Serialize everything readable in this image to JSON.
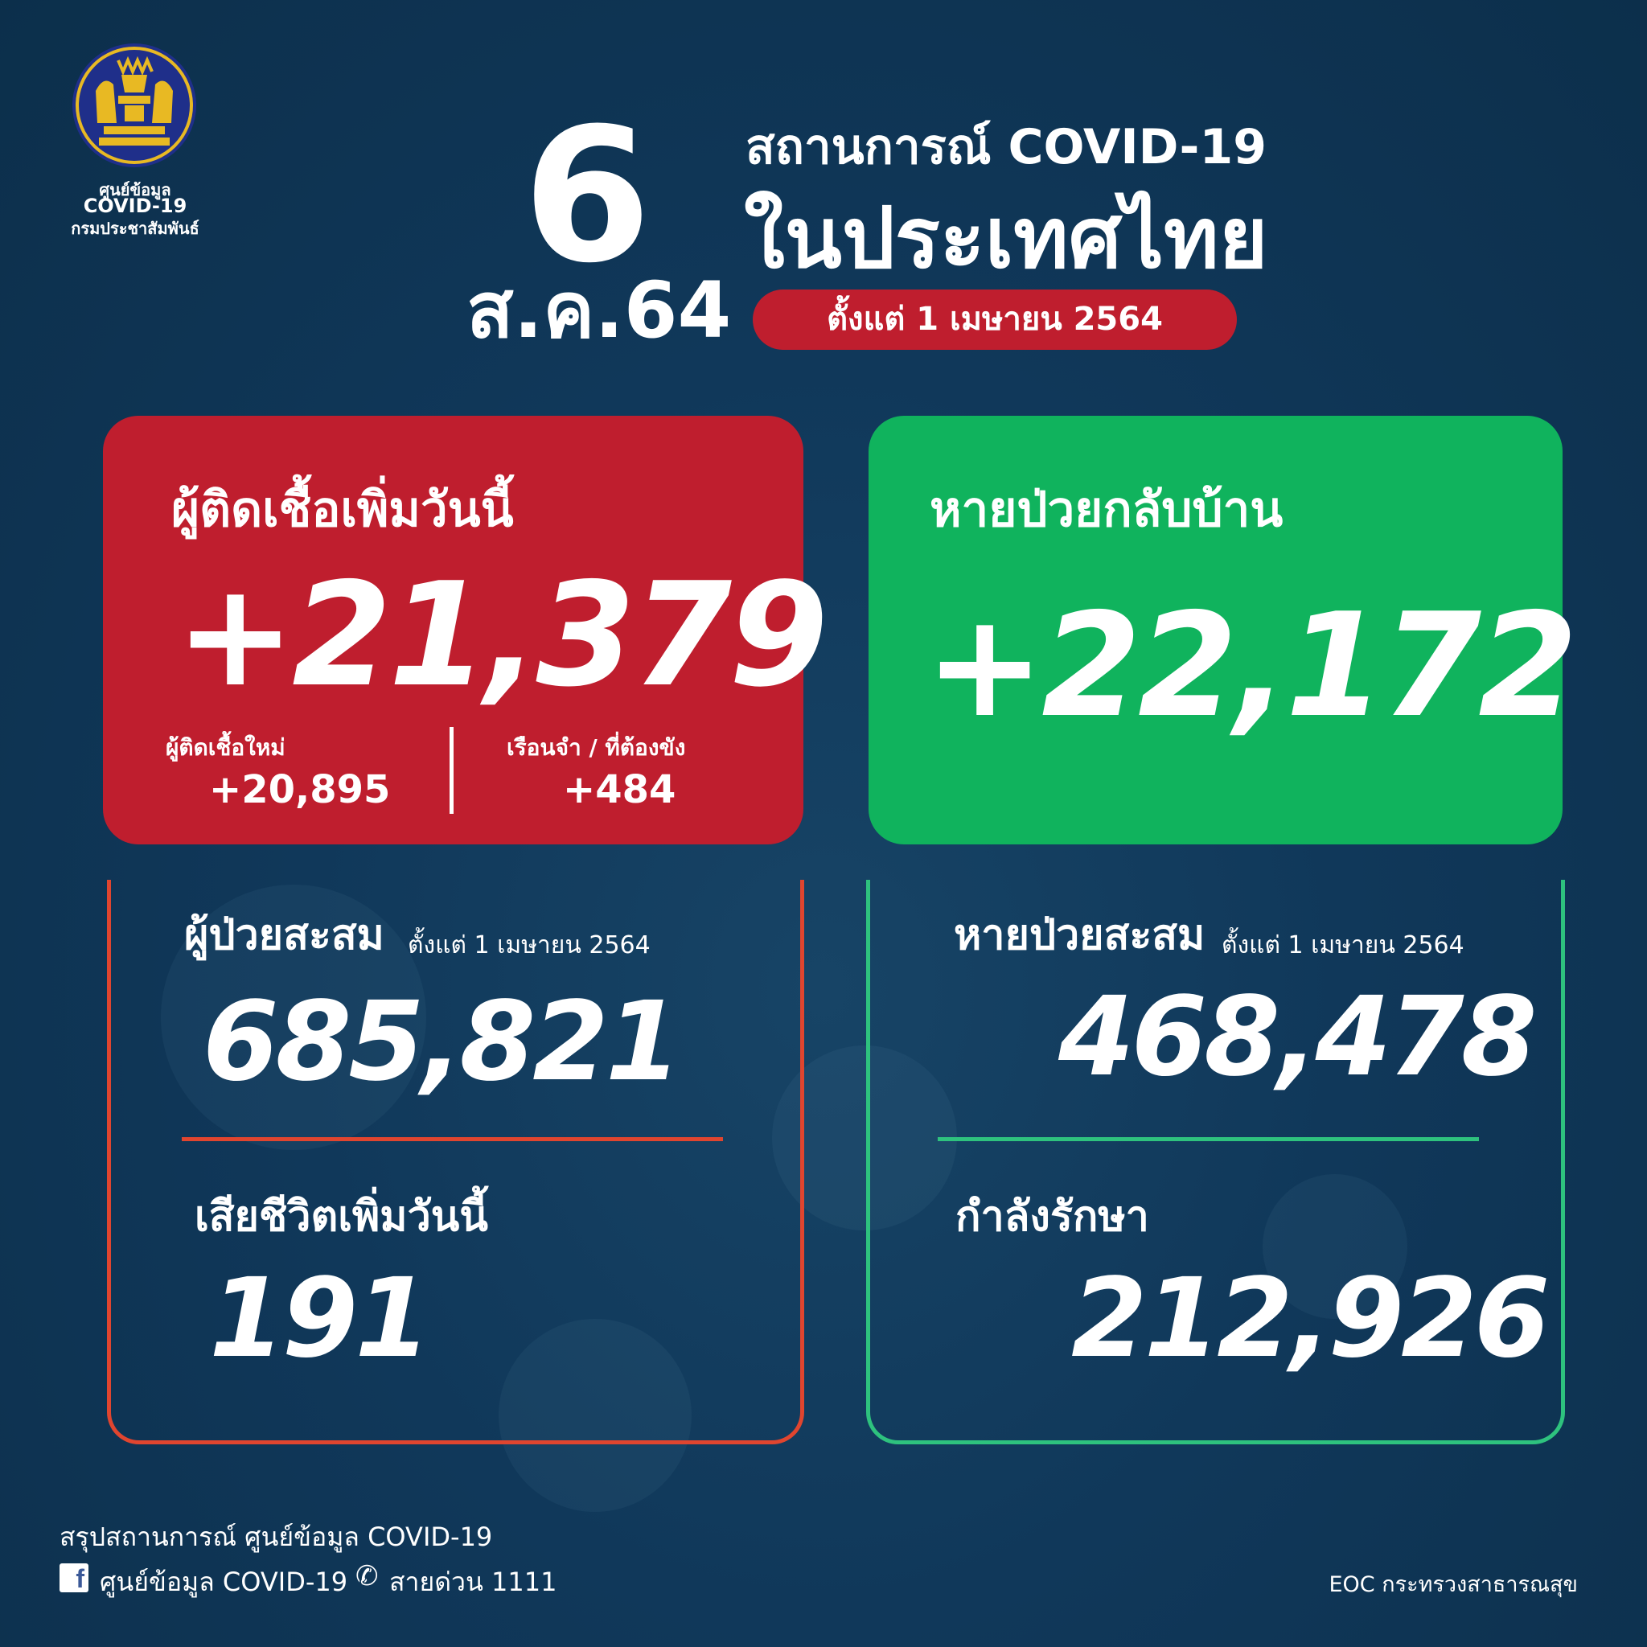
{
  "logo": {
    "line1": "ศูนย์ข้อมูล",
    "line2": "COVID-19",
    "line3": "กรมประชาสัมพันธ์"
  },
  "header": {
    "day": "6",
    "month_year": "ส.ค.64",
    "title_line1": "สถานการณ์ COVID-19",
    "title_line2": "ในประเทศไทย",
    "since_pill": "ตั้งแต่ 1 เมษายน 2564"
  },
  "new_cases": {
    "label": "ผู้ติดเชื้อเพิ่มวันนี้",
    "value": "+21,379",
    "local_label": "ผู้ติดเชื้อใหม่",
    "local_value": "+20,895",
    "prison_label": "เรือนจำ / ที่ต้องขัง",
    "prison_value": "+484"
  },
  "recovered_today": {
    "label": "หายป่วยกลับบ้าน",
    "value": "+22,172"
  },
  "cumulative_cases": {
    "label": "ผู้ป่วยสะสม",
    "since": "ตั้งแต่ 1 เมษายน 2564",
    "value": "685,821"
  },
  "deaths_today": {
    "label": "เสียชีวิตเพิ่มวันนี้",
    "value": "191"
  },
  "cumulative_recovered": {
    "label": "หายป่วยสะสม",
    "since": "ตั้งแต่ 1 เมษายน 2564",
    "value": "468,478"
  },
  "in_treatment": {
    "label": "กำลังรักษา",
    "value": "212,926"
  },
  "footer": {
    "summary": "สรุปสถานการณ์ ศูนย์ข้อมูล COVID-19",
    "facebook": "ศูนย์ข้อมูล COVID-19",
    "hotline": "สายด่วน 1111",
    "source": "EOC กระทรวงสาธารณสุข"
  },
  "colors": {
    "background": "#0f3654",
    "red": "#bf1e2e",
    "green": "#10b35d",
    "red_outline": "#e0452f",
    "green_outline": "#2ec27e",
    "seal_gold": "#e8b923",
    "seal_blue": "#1f2f8a"
  },
  "icons": [
    "thai-government-seal",
    "facebook-icon",
    "phone-icon"
  ]
}
